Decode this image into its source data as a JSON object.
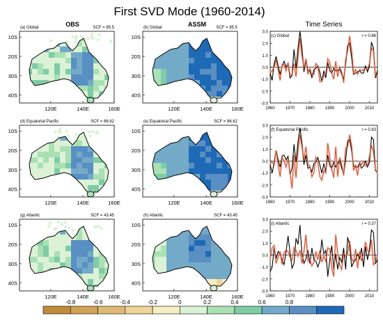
{
  "title": "First SVD Mode (1960-2014)",
  "columns": [
    "OBS",
    "ASSM",
    "Time Series"
  ],
  "colorbar": {
    "colors": [
      "#c08a3a",
      "#d2a257",
      "#e0bb76",
      "#eed497",
      "#f6eec2",
      "#dcf2d6",
      "#a9e0b4",
      "#7fcca6",
      "#73aac8",
      "#5a8fc4",
      "#1f6ab6"
    ],
    "tick_labels": [
      "-0.8",
      "-0.6",
      "-0.4",
      "-0.2",
      "0",
      "0.2",
      "0.4",
      "0.6",
      "0.8"
    ]
  },
  "map_axes": {
    "lon_labels": [
      "120E",
      "140E",
      "160E"
    ],
    "lat_labels": [
      "10S",
      "20S",
      "30S",
      "40S"
    ]
  },
  "ts_axes": {
    "x_ticks": [
      "1960",
      "1970",
      "1980",
      "1990",
      "2000",
      "2010"
    ],
    "y_ticks": [
      "3.0",
      "2.0",
      "1.0",
      "0.0",
      "-1.0",
      "-2.0",
      "-3.0"
    ]
  },
  "panels": [
    {
      "tag": "(a) Global",
      "scf": "SCF = 85.5",
      "kind": "map",
      "pattern": "obs"
    },
    {
      "tag": "(b) Global",
      "scf": "SCF = 85.5",
      "kind": "map",
      "pattern": "assm"
    },
    {
      "tag": "(c) Global",
      "r": "r = 0.66",
      "kind": "ts"
    },
    {
      "tag": "(d) Equatorial Pacific",
      "scf": "SCF = 86.62",
      "kind": "map",
      "pattern": "obs"
    },
    {
      "tag": "(e) Equatorial Pacific",
      "scf": "SCF = 86.62",
      "kind": "map",
      "pattern": "assm"
    },
    {
      "tag": "(f) Equatorial Pacific",
      "r": "r = 0.63",
      "kind": "ts"
    },
    {
      "tag": "(g) Atlantic",
      "scf": "SCF = 43.45",
      "kind": "map",
      "pattern": "obs"
    },
    {
      "tag": "(h) Atlantic",
      "scf": "SCF = 43.45",
      "kind": "map",
      "pattern": "assm2"
    },
    {
      "tag": "(i) Atlantic",
      "r": "r = 0.37",
      "kind": "ts"
    }
  ],
  "chart_data": {
    "type": "line",
    "x": [
      1960,
      1961,
      1962,
      1963,
      1964,
      1965,
      1966,
      1967,
      1968,
      1969,
      1970,
      1971,
      1972,
      1973,
      1974,
      1975,
      1976,
      1977,
      1978,
      1979,
      1980,
      1981,
      1982,
      1983,
      1984,
      1985,
      1986,
      1987,
      1988,
      1989,
      1990,
      1991,
      1992,
      1993,
      1994,
      1995,
      1996,
      1997,
      1998,
      1999,
      2000,
      2001,
      2002,
      2003,
      2004,
      2005,
      2006,
      2007,
      2008,
      2009,
      2010,
      2011,
      2012,
      2013,
      2014
    ],
    "ylim": [
      -3,
      3
    ],
    "xlim": [
      1960,
      2014
    ],
    "panels": [
      {
        "panel": "(c) Global",
        "series": [
          {
            "color": "#000000",
            "values": [
              -0.5,
              -1.1,
              0.3,
              0.9,
              0.1,
              -0.6,
              0.1,
              0.5,
              0.0,
              0.3,
              -0.9,
              -0.7,
              1.5,
              -0.1,
              1.6,
              3.0,
              1.6,
              -0.4,
              0.6,
              -0.3,
              -0.3,
              -0.9,
              -0.2,
              -0.1,
              0.1,
              -0.4,
              -1.2,
              -0.3,
              -0.9,
              0.4,
              -0.3,
              -0.5,
              -0.1,
              -0.3,
              -0.3,
              -0.1,
              -0.6,
              -1.0,
              0.3,
              1.8,
              2.0,
              0.8,
              -0.6,
              -0.5,
              -0.4,
              -0.3,
              -0.5,
              -0.5,
              0.1,
              -0.4,
              0.1,
              2.1,
              1.6,
              -0.9,
              -0.3
            ]
          },
          {
            "color": "#d2552a",
            "values": [
              -0.5,
              -0.3,
              0.0,
              0.6,
              -0.2,
              -1.1,
              0.2,
              0.2,
              -0.3,
              0.4,
              -0.7,
              -0.6,
              0.3,
              -0.8,
              0.8,
              2.4,
              1.0,
              -0.1,
              0.7,
              -0.6,
              -0.1,
              -0.7,
              -0.6,
              0.3,
              0.1,
              -1.2,
              -1.2,
              -0.7,
              -0.5,
              0.7,
              0.4,
              -0.5,
              -1.0,
              0.5,
              -0.8,
              0.0,
              -0.4,
              -1.3,
              0.6,
              1.4,
              2.6,
              1.4,
              -0.5,
              -0.2,
              -0.6,
              -0.2,
              -0.3,
              -0.2,
              -0.1,
              -0.2,
              0.3,
              1.6,
              1.4,
              -0.7,
              -0.9
            ]
          }
        ]
      },
      {
        "panel": "(f) Equatorial Pacific",
        "series": [
          {
            "color": "#000000",
            "values": [
              -0.3,
              -1.0,
              -0.1,
              0.9,
              0.1,
              -0.5,
              0.4,
              0.5,
              0.1,
              0.4,
              -1.1,
              -0.6,
              1.4,
              -0.1,
              1.6,
              2.8,
              1.5,
              -0.3,
              0.5,
              -0.6,
              -0.5,
              -0.9,
              -0.2,
              -0.1,
              0.3,
              -0.3,
              -1.0,
              -0.2,
              -0.9,
              0.5,
              -0.4,
              -0.6,
              -0.1,
              -0.5,
              -0.2,
              0.1,
              -0.6,
              -1.0,
              0.1,
              1.7,
              1.8,
              0.9,
              -0.4,
              -0.5,
              -0.5,
              -0.2,
              -0.6,
              -0.4,
              0.0,
              -0.5,
              -0.1,
              2.0,
              1.8,
              -0.8,
              -0.9
            ]
          },
          {
            "color": "#d2552a",
            "values": [
              -0.2,
              -0.1,
              -0.3,
              0.9,
              -0.3,
              -1.3,
              0.3,
              0.0,
              -0.5,
              0.2,
              -1.0,
              -2.3,
              0.5,
              -1.4,
              0.9,
              2.2,
              1.2,
              0.1,
              1.2,
              -0.3,
              -0.4,
              -1.3,
              -1.0,
              0.3,
              -0.1,
              -1.3,
              -1.6,
              -0.8,
              -1.0,
              1.5,
              0.3,
              -0.7,
              -1.4,
              1.2,
              -1.3,
              0.3,
              -0.3,
              -1.2,
              1.1,
              1.2,
              2.2,
              1.3,
              -0.8,
              -0.3,
              -1.2,
              -0.1,
              -0.3,
              0.0,
              -0.4,
              -0.4,
              0.4,
              1.3,
              0.8,
              -0.7,
              -1.0
            ]
          }
        ]
      },
      {
        "panel": "(i) Atlantic",
        "series": [
          {
            "color": "#000000",
            "values": [
              -1.4,
              -1.0,
              0.6,
              -0.3,
              0.3,
              0.1,
              -0.4,
              -0.8,
              0.3,
              1.6,
              0.2,
              -1.1,
              -0.7,
              1.4,
              0.9,
              2.5,
              0.1,
              -0.7,
              -0.3,
              0.4,
              -0.7,
              0.6,
              -0.4,
              -0.5,
              -1.0,
              -0.5,
              1.3,
              0.1,
              0.4,
              -1.8,
              -0.4,
              0.8,
              -1.2,
              0.1,
              -1.2,
              -0.2,
              -0.6,
              0.6,
              -1.2,
              1.5,
              0.8,
              -1.0,
              -0.6,
              -0.4,
              0.1,
              -0.3,
              0.6,
              -1.0,
              0.7,
              -0.4,
              0.5,
              2.1,
              1.9,
              -0.7,
              -0.4
            ]
          },
          {
            "color": "#d2552a",
            "values": [
              -0.3,
              0.6,
              0.8,
              -0.7,
              -0.2,
              0.3,
              -0.8,
              0.2,
              0.4,
              0.3,
              -0.2,
              -0.4,
              0.6,
              0.4,
              -0.1,
              0.4,
              -0.7,
              0.3,
              1.7,
              -0.5,
              -0.4,
              -0.9,
              -0.6,
              0.3,
              -0.4,
              0.4,
              -0.6,
              -0.1,
              -0.5,
              0.6,
              0.5,
              -1.1,
              -1.8,
              1.7,
              0.1,
              -0.8,
              -1.2,
              0.2,
              -0.1,
              0.1,
              1.2,
              -0.3,
              -0.6,
              0.5,
              -1.1,
              0.3,
              -0.5,
              0.1,
              1.1,
              0.4,
              0.2,
              1.3,
              -0.8,
              -0.6,
              0.0
            ]
          }
        ]
      }
    ]
  }
}
